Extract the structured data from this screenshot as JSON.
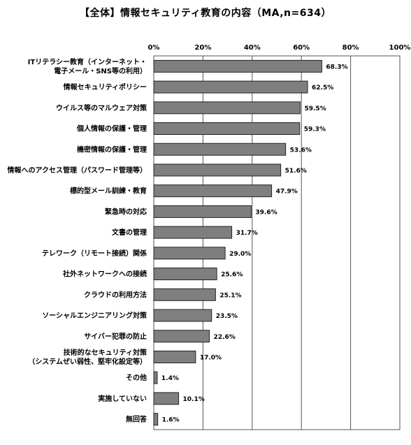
{
  "title": "【全体】情報セキュリティ教育の内容（MA,n=634）",
  "chart_data": {
    "type": "bar",
    "orientation": "horizontal",
    "title": "【全体】情報セキュリティ教育の内容（MA,n=634）",
    "xlim": [
      0,
      100
    ],
    "ticks": [
      "0%",
      "20%",
      "40%",
      "60%",
      "80%",
      "100%"
    ],
    "tick_values": [
      0,
      20,
      40,
      60,
      80,
      100
    ],
    "grid": true,
    "bar_color": "#7f7f7f",
    "categories": [
      [
        "ITリテラシー教育（インターネット・",
        "電子メール・SNS等の利用）"
      ],
      [
        "情報セキュリティポリシー"
      ],
      [
        "ウイルス等のマルウェア対策"
      ],
      [
        "個人情報の保護・管理"
      ],
      [
        "機密情報の保護・管理"
      ],
      [
        "情報へのアクセス管理（パスワード管理等）"
      ],
      [
        "標的型メール訓練・教育"
      ],
      [
        "緊急時の対応"
      ],
      [
        "文書の管理"
      ],
      [
        "テレワーク（リモート接続）関係"
      ],
      [
        "社外ネットワークへの接続"
      ],
      [
        "クラウドの利用方法"
      ],
      [
        "ソーシャルエンジニアリング対策"
      ],
      [
        "サイバー犯罪の防止"
      ],
      [
        "技術的なセキュリティ対策",
        "（システムぜい弱性、堅牢化設定等）"
      ],
      [
        "その他"
      ],
      [
        "実施していない"
      ],
      [
        "無回答"
      ]
    ],
    "values": [
      68.3,
      62.5,
      59.5,
      59.3,
      53.6,
      51.6,
      47.9,
      39.6,
      31.7,
      29.0,
      25.6,
      25.1,
      23.5,
      22.6,
      17.0,
      1.4,
      10.1,
      1.6
    ],
    "value_labels": [
      "68.3%",
      "62.5%",
      "59.5%",
      "59.3%",
      "53.6%",
      "51.6%",
      "47.9%",
      "39.6%",
      "31.7%",
      "29.0%",
      "25.6%",
      "25.1%",
      "23.5%",
      "22.6%",
      "17.0%",
      "1.4%",
      "10.1%",
      "1.6%"
    ]
  }
}
